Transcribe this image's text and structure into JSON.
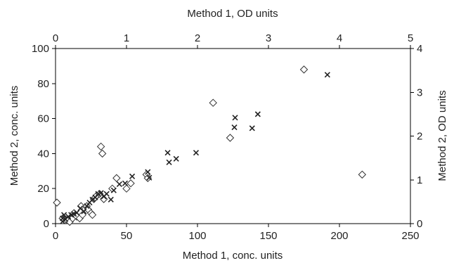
{
  "chart_data": {
    "type": "scatter",
    "title": "",
    "xlabel_bottom": "Method 1, conc. units",
    "xlabel_top": "Method 1, OD units",
    "ylabel_left": "Method 2, conc. units",
    "ylabel_right": "Method 2, OD units",
    "xlim_bottom": [
      0,
      250
    ],
    "xticks_bottom": [
      0,
      50,
      100,
      150,
      200,
      250
    ],
    "ylim_left": [
      0,
      100
    ],
    "yticks_left": [
      0,
      20,
      40,
      60,
      80,
      100
    ],
    "xlim_top": [
      0,
      5
    ],
    "xticks_top": [
      0,
      1,
      2,
      3,
      4,
      5
    ],
    "ylim_right": [
      0,
      4
    ],
    "yticks_right": [
      0,
      1,
      2,
      3,
      4
    ],
    "grid": false,
    "legend": "none",
    "series": [
      {
        "marker": "diamond",
        "axes": "bottom-left",
        "points": [
          [
            1,
            12
          ],
          [
            5,
            3
          ],
          [
            8,
            2
          ],
          [
            10,
            1
          ],
          [
            12,
            3
          ],
          [
            13,
            6
          ],
          [
            14,
            5
          ],
          [
            15,
            4
          ],
          [
            17,
            3
          ],
          [
            18,
            10
          ],
          [
            19,
            5
          ],
          [
            22,
            10
          ],
          [
            23,
            8
          ],
          [
            25,
            6
          ],
          [
            26,
            5
          ],
          [
            27,
            14
          ],
          [
            28,
            15
          ],
          [
            29,
            16
          ],
          [
            31,
            17
          ],
          [
            32,
            44
          ],
          [
            33,
            40
          ],
          [
            34,
            14
          ],
          [
            40,
            20
          ],
          [
            43,
            26
          ],
          [
            50,
            20
          ],
          [
            53,
            23
          ],
          [
            64,
            28
          ],
          [
            65,
            26
          ],
          [
            111,
            69
          ],
          [
            123,
            49
          ],
          [
            175,
            88
          ],
          [
            216,
            28
          ]
        ]
      },
      {
        "marker": "cross",
        "axes": "top-right",
        "points": [
          [
            0.1,
            0.05
          ],
          [
            0.1,
            0.12
          ],
          [
            0.12,
            0.2
          ],
          [
            0.14,
            0.1
          ],
          [
            0.18,
            0.16
          ],
          [
            0.22,
            0.2
          ],
          [
            0.26,
            0.22
          ],
          [
            0.3,
            0.25
          ],
          [
            0.35,
            0.35
          ],
          [
            0.4,
            0.28
          ],
          [
            0.44,
            0.4
          ],
          [
            0.48,
            0.48
          ],
          [
            0.52,
            0.55
          ],
          [
            0.56,
            0.6
          ],
          [
            0.6,
            0.68
          ],
          [
            0.64,
            0.7
          ],
          [
            0.68,
            0.62
          ],
          [
            0.72,
            0.68
          ],
          [
            0.78,
            0.55
          ],
          [
            0.82,
            0.76
          ],
          [
            0.9,
            0.9
          ],
          [
            0.98,
            0.92
          ],
          [
            1.08,
            1.08
          ],
          [
            1.3,
            1.18
          ],
          [
            1.32,
            1.05
          ],
          [
            1.58,
            1.62
          ],
          [
            1.6,
            1.4
          ],
          [
            1.7,
            1.48
          ],
          [
            1.98,
            1.62
          ],
          [
            2.52,
            2.2
          ],
          [
            2.53,
            2.42
          ],
          [
            2.77,
            2.18
          ],
          [
            2.85,
            2.5
          ],
          [
            3.83,
            3.4
          ]
        ]
      }
    ]
  }
}
